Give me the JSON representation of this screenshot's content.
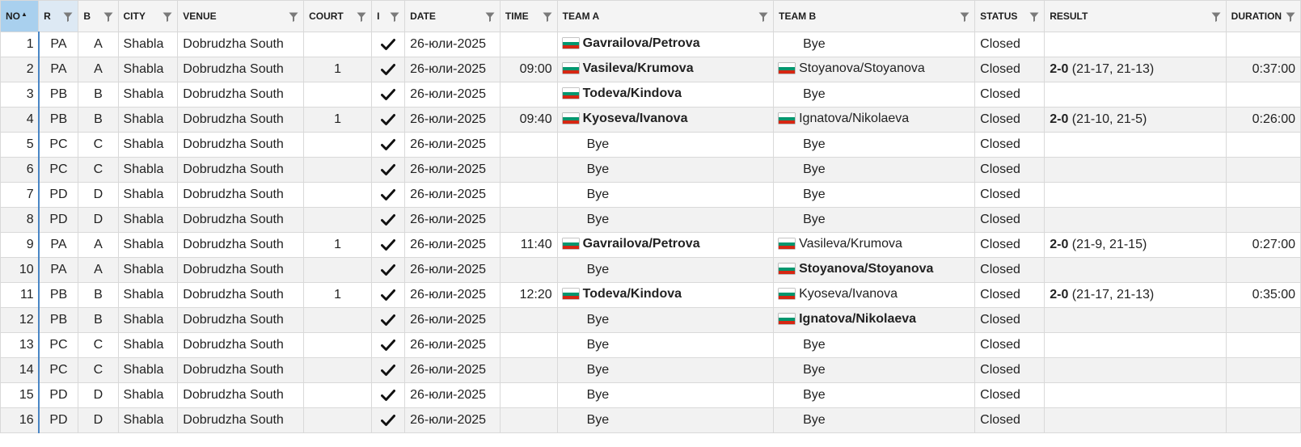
{
  "columns": [
    {
      "key": "no",
      "label": "NO",
      "sorted": true
    },
    {
      "key": "r",
      "label": "R"
    },
    {
      "key": "b",
      "label": "B"
    },
    {
      "key": "city",
      "label": "CITY"
    },
    {
      "key": "venue",
      "label": "VENUE"
    },
    {
      "key": "court",
      "label": "COURT"
    },
    {
      "key": "check",
      "label": "I"
    },
    {
      "key": "date",
      "label": "DATE"
    },
    {
      "key": "time",
      "label": "TIME"
    },
    {
      "key": "team_a",
      "label": "TEAM A"
    },
    {
      "key": "team_b",
      "label": "TEAM B"
    },
    {
      "key": "status",
      "label": "STATUS"
    },
    {
      "key": "result",
      "label": "RESULT"
    },
    {
      "key": "duration",
      "label": "DURATION"
    }
  ],
  "colors": {
    "header_sorted": "#a9d0ee",
    "row_alt": "#f2f2f2",
    "flag_white": "#ffffff",
    "flag_green": "#00966e",
    "flag_red": "#d62612"
  },
  "rows": [
    {
      "no": "1",
      "r": "PA",
      "b": "A",
      "city": "Shabla",
      "venue": "Dobrudzha South",
      "court": "",
      "date": "26-юли-2025",
      "time": "",
      "team_a": "Gavrailova/Petrova",
      "team_a_flag": true,
      "team_a_bold": true,
      "team_b": "Bye",
      "team_b_flag": false,
      "team_b_bold": false,
      "status": "Closed",
      "result_main": "",
      "result_sets": "",
      "duration": ""
    },
    {
      "no": "2",
      "r": "PA",
      "b": "A",
      "city": "Shabla",
      "venue": "Dobrudzha South",
      "court": "1",
      "date": "26-юли-2025",
      "time": "09:00",
      "team_a": "Vasileva/Krumova",
      "team_a_flag": true,
      "team_a_bold": true,
      "team_b": "Stoyanova/Stoyanova",
      "team_b_flag": true,
      "team_b_bold": false,
      "status": "Closed",
      "result_main": "2-0",
      "result_sets": "(21-17, 21-13)",
      "duration": "0:37:00"
    },
    {
      "no": "3",
      "r": "PB",
      "b": "B",
      "city": "Shabla",
      "venue": "Dobrudzha South",
      "court": "",
      "date": "26-юли-2025",
      "time": "",
      "team_a": "Todeva/Kindova",
      "team_a_flag": true,
      "team_a_bold": true,
      "team_b": "Bye",
      "team_b_flag": false,
      "team_b_bold": false,
      "status": "Closed",
      "result_main": "",
      "result_sets": "",
      "duration": ""
    },
    {
      "no": "4",
      "r": "PB",
      "b": "B",
      "city": "Shabla",
      "venue": "Dobrudzha South",
      "court": "1",
      "date": "26-юли-2025",
      "time": "09:40",
      "team_a": "Kyoseva/Ivanova",
      "team_a_flag": true,
      "team_a_bold": true,
      "team_b": "Ignatova/Nikolaeva",
      "team_b_flag": true,
      "team_b_bold": false,
      "status": "Closed",
      "result_main": "2-0",
      "result_sets": "(21-10, 21-5)",
      "duration": "0:26:00"
    },
    {
      "no": "5",
      "r": "PC",
      "b": "C",
      "city": "Shabla",
      "venue": "Dobrudzha South",
      "court": "",
      "date": "26-юли-2025",
      "time": "",
      "team_a": "Bye",
      "team_a_flag": false,
      "team_a_bold": false,
      "team_b": "Bye",
      "team_b_flag": false,
      "team_b_bold": false,
      "status": "Closed",
      "result_main": "",
      "result_sets": "",
      "duration": ""
    },
    {
      "no": "6",
      "r": "PC",
      "b": "C",
      "city": "Shabla",
      "venue": "Dobrudzha South",
      "court": "",
      "date": "26-юли-2025",
      "time": "",
      "team_a": "Bye",
      "team_a_flag": false,
      "team_a_bold": false,
      "team_b": "Bye",
      "team_b_flag": false,
      "team_b_bold": false,
      "status": "Closed",
      "result_main": "",
      "result_sets": "",
      "duration": ""
    },
    {
      "no": "7",
      "r": "PD",
      "b": "D",
      "city": "Shabla",
      "venue": "Dobrudzha South",
      "court": "",
      "date": "26-юли-2025",
      "time": "",
      "team_a": "Bye",
      "team_a_flag": false,
      "team_a_bold": false,
      "team_b": "Bye",
      "team_b_flag": false,
      "team_b_bold": false,
      "status": "Closed",
      "result_main": "",
      "result_sets": "",
      "duration": ""
    },
    {
      "no": "8",
      "r": "PD",
      "b": "D",
      "city": "Shabla",
      "venue": "Dobrudzha South",
      "court": "",
      "date": "26-юли-2025",
      "time": "",
      "team_a": "Bye",
      "team_a_flag": false,
      "team_a_bold": false,
      "team_b": "Bye",
      "team_b_flag": false,
      "team_b_bold": false,
      "status": "Closed",
      "result_main": "",
      "result_sets": "",
      "duration": ""
    },
    {
      "no": "9",
      "r": "PA",
      "b": "A",
      "city": "Shabla",
      "venue": "Dobrudzha South",
      "court": "1",
      "date": "26-юли-2025",
      "time": "11:40",
      "team_a": "Gavrailova/Petrova",
      "team_a_flag": true,
      "team_a_bold": true,
      "team_b": "Vasileva/Krumova",
      "team_b_flag": true,
      "team_b_bold": false,
      "status": "Closed",
      "result_main": "2-0",
      "result_sets": "(21-9, 21-15)",
      "duration": "0:27:00"
    },
    {
      "no": "10",
      "r": "PA",
      "b": "A",
      "city": "Shabla",
      "venue": "Dobrudzha South",
      "court": "",
      "date": "26-юли-2025",
      "time": "",
      "team_a": "Bye",
      "team_a_flag": false,
      "team_a_bold": false,
      "team_b": "Stoyanova/Stoyanova",
      "team_b_flag": true,
      "team_b_bold": true,
      "status": "Closed",
      "result_main": "",
      "result_sets": "",
      "duration": ""
    },
    {
      "no": "11",
      "r": "PB",
      "b": "B",
      "city": "Shabla",
      "venue": "Dobrudzha South",
      "court": "1",
      "date": "26-юли-2025",
      "time": "12:20",
      "team_a": "Todeva/Kindova",
      "team_a_flag": true,
      "team_a_bold": true,
      "team_b": "Kyoseva/Ivanova",
      "team_b_flag": true,
      "team_b_bold": false,
      "status": "Closed",
      "result_main": "2-0",
      "result_sets": "(21-17, 21-13)",
      "duration": "0:35:00"
    },
    {
      "no": "12",
      "r": "PB",
      "b": "B",
      "city": "Shabla",
      "venue": "Dobrudzha South",
      "court": "",
      "date": "26-юли-2025",
      "time": "",
      "team_a": "Bye",
      "team_a_flag": false,
      "team_a_bold": false,
      "team_b": "Ignatova/Nikolaeva",
      "team_b_flag": true,
      "team_b_bold": true,
      "status": "Closed",
      "result_main": "",
      "result_sets": "",
      "duration": ""
    },
    {
      "no": "13",
      "r": "PC",
      "b": "C",
      "city": "Shabla",
      "venue": "Dobrudzha South",
      "court": "",
      "date": "26-юли-2025",
      "time": "",
      "team_a": "Bye",
      "team_a_flag": false,
      "team_a_bold": false,
      "team_b": "Bye",
      "team_b_flag": false,
      "team_b_bold": false,
      "status": "Closed",
      "result_main": "",
      "result_sets": "",
      "duration": ""
    },
    {
      "no": "14",
      "r": "PC",
      "b": "C",
      "city": "Shabla",
      "venue": "Dobrudzha South",
      "court": "",
      "date": "26-юли-2025",
      "time": "",
      "team_a": "Bye",
      "team_a_flag": false,
      "team_a_bold": false,
      "team_b": "Bye",
      "team_b_flag": false,
      "team_b_bold": false,
      "status": "Closed",
      "result_main": "",
      "result_sets": "",
      "duration": ""
    },
    {
      "no": "15",
      "r": "PD",
      "b": "D",
      "city": "Shabla",
      "venue": "Dobrudzha South",
      "court": "",
      "date": "26-юли-2025",
      "time": "",
      "team_a": "Bye",
      "team_a_flag": false,
      "team_a_bold": false,
      "team_b": "Bye",
      "team_b_flag": false,
      "team_b_bold": false,
      "status": "Closed",
      "result_main": "",
      "result_sets": "",
      "duration": ""
    },
    {
      "no": "16",
      "r": "PD",
      "b": "D",
      "city": "Shabla",
      "venue": "Dobrudzha South",
      "court": "",
      "date": "26-юли-2025",
      "time": "",
      "team_a": "Bye",
      "team_a_flag": false,
      "team_a_bold": false,
      "team_b": "Bye",
      "team_b_flag": false,
      "team_b_bold": false,
      "status": "Closed",
      "result_main": "",
      "result_sets": "",
      "duration": ""
    }
  ]
}
